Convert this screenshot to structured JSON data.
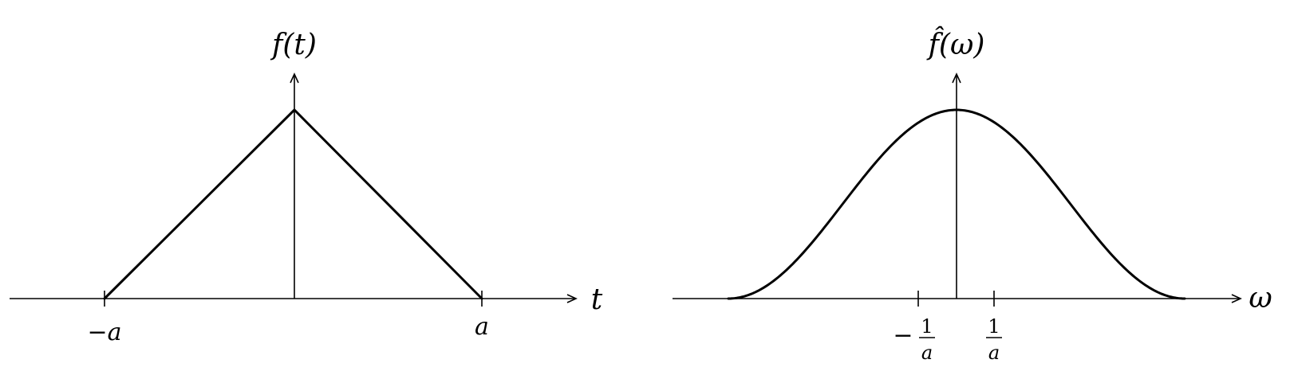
{
  "left_plot": {
    "y_label": "f(t)",
    "x_label": "t",
    "ticks": [
      {
        "label": "−a"
      },
      {
        "label": "a"
      }
    ]
  },
  "right_plot": {
    "y_label": "f̂(ω)",
    "x_label": "ω",
    "ticks": [
      {
        "sign": "−",
        "numerator": "1",
        "denominator": "a"
      },
      {
        "sign": "",
        "numerator": "1",
        "denominator": "a"
      }
    ]
  }
}
